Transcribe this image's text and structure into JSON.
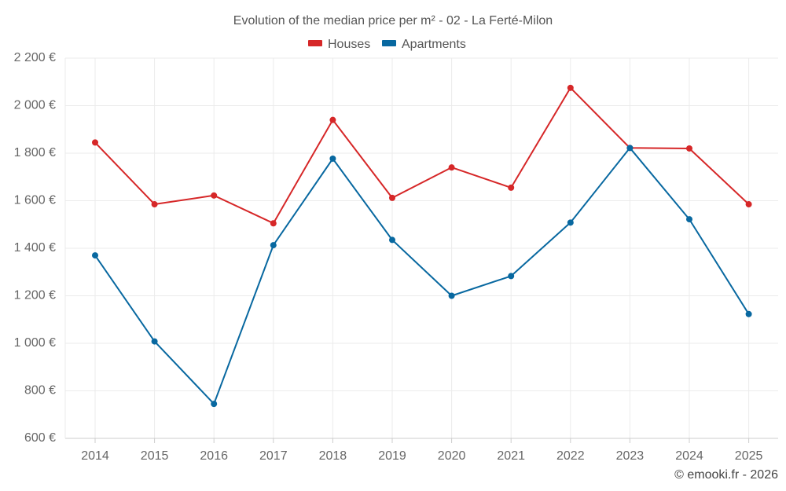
{
  "chart_data": {
    "type": "line",
    "title": "Evolution of the median price per m² - 02 - La Ferté-Milon",
    "categories": [
      "2014",
      "2015",
      "2016",
      "2017",
      "2018",
      "2019",
      "2020",
      "2021",
      "2022",
      "2023",
      "2024",
      "2025"
    ],
    "series": [
      {
        "name": "Houses",
        "color": "#d62728",
        "values": [
          1845,
          1585,
          1622,
          1505,
          1940,
          1612,
          1740,
          1655,
          2075,
          1822,
          1820,
          1585
        ]
      },
      {
        "name": "Apartments",
        "color": "#0868a0",
        "values": [
          1370,
          1008,
          745,
          1413,
          1777,
          1435,
          1200,
          1283,
          1508,
          1822,
          1522,
          1123
        ]
      }
    ],
    "y_ticks": [
      600,
      800,
      1000,
      1200,
      1400,
      1600,
      1800,
      2000,
      2200
    ],
    "y_tick_labels": [
      "600 €",
      "800 €",
      "1 000 €",
      "1 200 €",
      "1 400 €",
      "1 600 €",
      "1 800 €",
      "2 000 €",
      "2 200 €"
    ],
    "ylim": [
      600,
      2200
    ],
    "xlabel": "",
    "ylabel": "",
    "grid": true,
    "legend_position": "top-center"
  },
  "credit": "© emooki.fr - 2026"
}
